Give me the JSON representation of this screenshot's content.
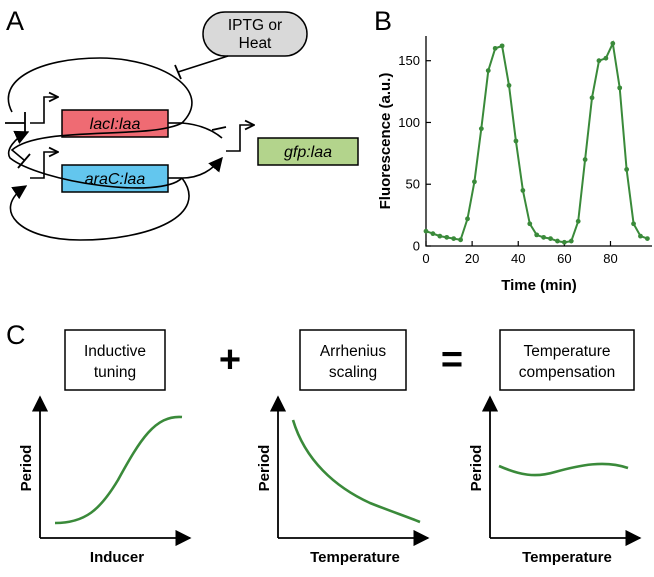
{
  "panels": {
    "a": "A",
    "b": "B",
    "c": "C"
  },
  "circuit": {
    "inducer_line1": "IPTG or",
    "inducer_line2": "Heat",
    "genes": [
      "lacI:laa",
      "araC:laa",
      "gfp:laa"
    ],
    "colors": {
      "lacI": "#ef6b73",
      "araC": "#63c6ee",
      "gfp": "#b3d48c"
    }
  },
  "chart_data": {
    "type": "line",
    "xlabel": "Time (min)",
    "ylabel": "Fluorescence (a.u.)",
    "xlim": [
      0,
      98
    ],
    "ylim": [
      0,
      170
    ],
    "xticks": [
      "0",
      "20",
      "40",
      "60",
      "80"
    ],
    "yticks": [
      "0",
      "50",
      "100",
      "150"
    ],
    "color": "#3a8a3a",
    "x": [
      0,
      3,
      6,
      9,
      12,
      15,
      18,
      21,
      24,
      27,
      30,
      33,
      36,
      39,
      42,
      45,
      48,
      51,
      54,
      57,
      60,
      63,
      66,
      69,
      72,
      75,
      78,
      81,
      84,
      87,
      90,
      93,
      96
    ],
    "y": [
      12,
      10,
      8,
      7,
      6,
      5,
      22,
      52,
      95,
      142,
      160,
      162,
      130,
      85,
      45,
      18,
      9,
      7,
      6,
      4,
      3,
      4,
      20,
      70,
      120,
      150,
      152,
      164,
      128,
      62,
      18,
      8,
      6
    ]
  },
  "concept": {
    "box1_line1": "Inductive",
    "box1_line2": "tuning",
    "box2_line1": "Arrhenius",
    "box2_line2": "scaling",
    "box3_line1": "Temperature",
    "box3_line2": "compensation",
    "plus": "+",
    "equals": "=",
    "plot1_ylabel": "Period",
    "plot1_xlabel": "Inducer",
    "plot2_ylabel": "Period",
    "plot2_xlabel": "Temperature",
    "plot3_ylabel": "Period",
    "plot3_xlabel": "Temperature",
    "curve_color": "#3a8a3a"
  }
}
